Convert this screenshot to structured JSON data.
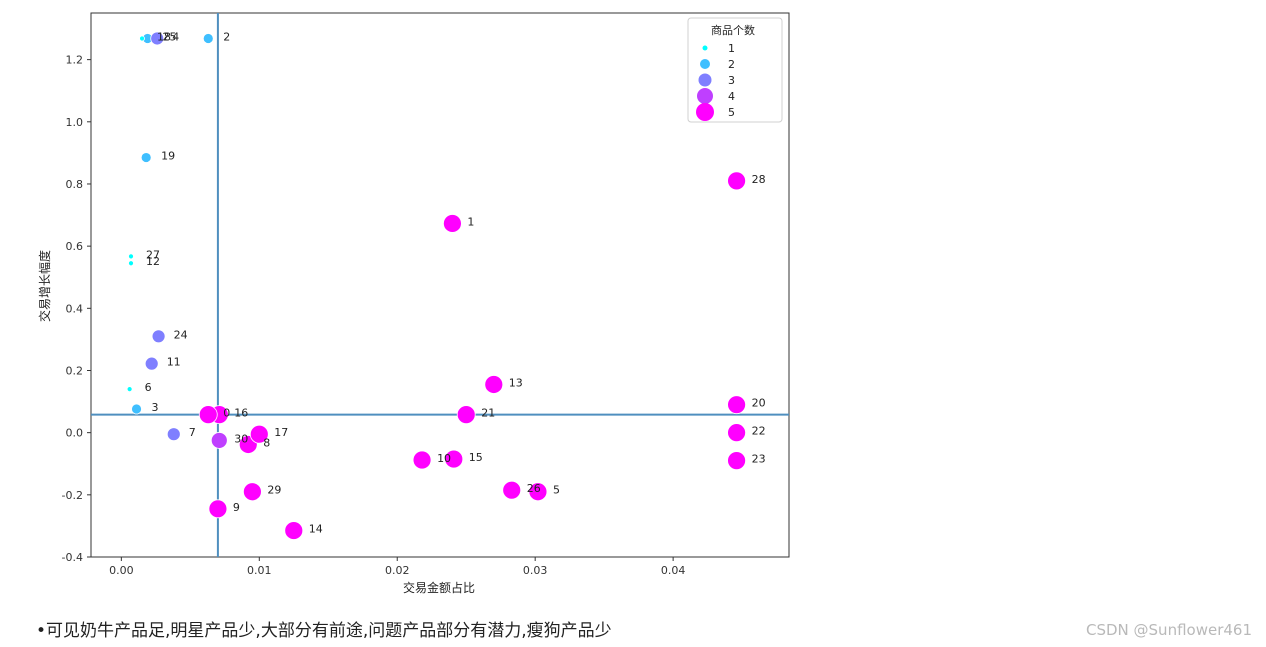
{
  "chart_data": {
    "type": "scatter",
    "xlabel": "交易金额占比",
    "ylabel": "交易增长幅度",
    "xlim": [
      -0.0022,
      0.0484
    ],
    "ylim": [
      -0.4,
      1.35
    ],
    "xticks": [
      0.0,
      0.01,
      0.02,
      0.03,
      0.04
    ],
    "xtick_labels": [
      "0.00",
      "0.01",
      "0.02",
      "0.03",
      "0.04"
    ],
    "yticks": [
      -0.4,
      -0.2,
      0.0,
      0.2,
      0.4,
      0.6,
      0.8,
      1.0,
      1.2
    ],
    "ytick_labels": [
      "-0.4",
      "-0.2",
      "0.0",
      "0.2",
      "0.4",
      "0.6",
      "0.8",
      "1.0",
      "1.2"
    ],
    "vline_x": 0.007,
    "hline_y": 0.058,
    "grid": false,
    "legend": {
      "title": "商品个数",
      "placement": "top-right",
      "entries": [
        {
          "label": "1",
          "value": 1,
          "color": "#00ffff"
        },
        {
          "label": "2",
          "value": 2,
          "color": "#3fbfff"
        },
        {
          "label": "3",
          "value": 3,
          "color": "#7f7fff"
        },
        {
          "label": "4",
          "value": 4,
          "color": "#bf3fff"
        },
        {
          "label": "5",
          "value": 5,
          "color": "#ff00ff"
        }
      ]
    },
    "points": [
      {
        "label": "1",
        "x": 0.024,
        "y": 0.673,
        "count": 5
      },
      {
        "label": "2",
        "x": 0.0063,
        "y": 1.268,
        "count": 2
      },
      {
        "label": "3",
        "x": 0.0011,
        "y": 0.076,
        "count": 2
      },
      {
        "label": "5",
        "x": 0.0302,
        "y": -0.19,
        "count": 5
      },
      {
        "label": "6",
        "x": 0.0006,
        "y": 0.14,
        "count": 1
      },
      {
        "label": "7",
        "x": 0.0038,
        "y": -0.005,
        "count": 3
      },
      {
        "label": "8",
        "x": 0.0092,
        "y": -0.038,
        "count": 5
      },
      {
        "label": "9",
        "x": 0.007,
        "y": -0.245,
        "count": 5
      },
      {
        "label": "10",
        "x": 0.0218,
        "y": -0.088,
        "count": 5
      },
      {
        "label": "11",
        "x": 0.0022,
        "y": 0.222,
        "count": 3
      },
      {
        "label": "12",
        "x": 0.0007,
        "y": 0.545,
        "count": 1
      },
      {
        "label": "13",
        "x": 0.027,
        "y": 0.155,
        "count": 5
      },
      {
        "label": "14",
        "x": 0.0125,
        "y": -0.315,
        "count": 5
      },
      {
        "label": "15",
        "x": 0.0241,
        "y": -0.085,
        "count": 5
      },
      {
        "label": "16",
        "x": 0.0071,
        "y": 0.058,
        "count": 5
      },
      {
        "label": "17",
        "x": 0.01,
        "y": -0.005,
        "count": 5
      },
      {
        "label": "19",
        "x": 0.0018,
        "y": 0.885,
        "count": 2
      },
      {
        "label": "20",
        "x": 0.0446,
        "y": 0.09,
        "count": 5
      },
      {
        "label": "21",
        "x": 0.025,
        "y": 0.058,
        "count": 5
      },
      {
        "label": "22",
        "x": 0.0446,
        "y": 0.0,
        "count": 5
      },
      {
        "label": "23",
        "x": 0.0446,
        "y": -0.09,
        "count": 5
      },
      {
        "label": "24",
        "x": 0.0027,
        "y": 0.31,
        "count": 3
      },
      {
        "label": "25",
        "x": 0.0019,
        "y": 1.268,
        "count": 2
      },
      {
        "label": "26",
        "x": 0.0283,
        "y": -0.185,
        "count": 5
      },
      {
        "label": "27",
        "x": 0.0007,
        "y": 0.567,
        "count": 1
      },
      {
        "label": "28",
        "x": 0.0446,
        "y": 0.81,
        "count": 5
      },
      {
        "label": "29",
        "x": 0.0095,
        "y": -0.19,
        "count": 5
      },
      {
        "label": "30",
        "x": 0.0071,
        "y": -0.025,
        "count": 4
      },
      {
        "label": "0",
        "x": 0.0063,
        "y": 0.058,
        "count": 5
      },
      {
        "label": "4",
        "x": 0.0026,
        "y": 1.268,
        "count": 3
      },
      {
        "label": "18",
        "x": 0.0015,
        "y": 1.268,
        "count": 1
      }
    ]
  },
  "caption": "•可见奶牛产品足,明星产品少,大部分有前途,问题产品部分有潜力,瘦狗产品少",
  "watermark": "CSDN @Sunflower461"
}
